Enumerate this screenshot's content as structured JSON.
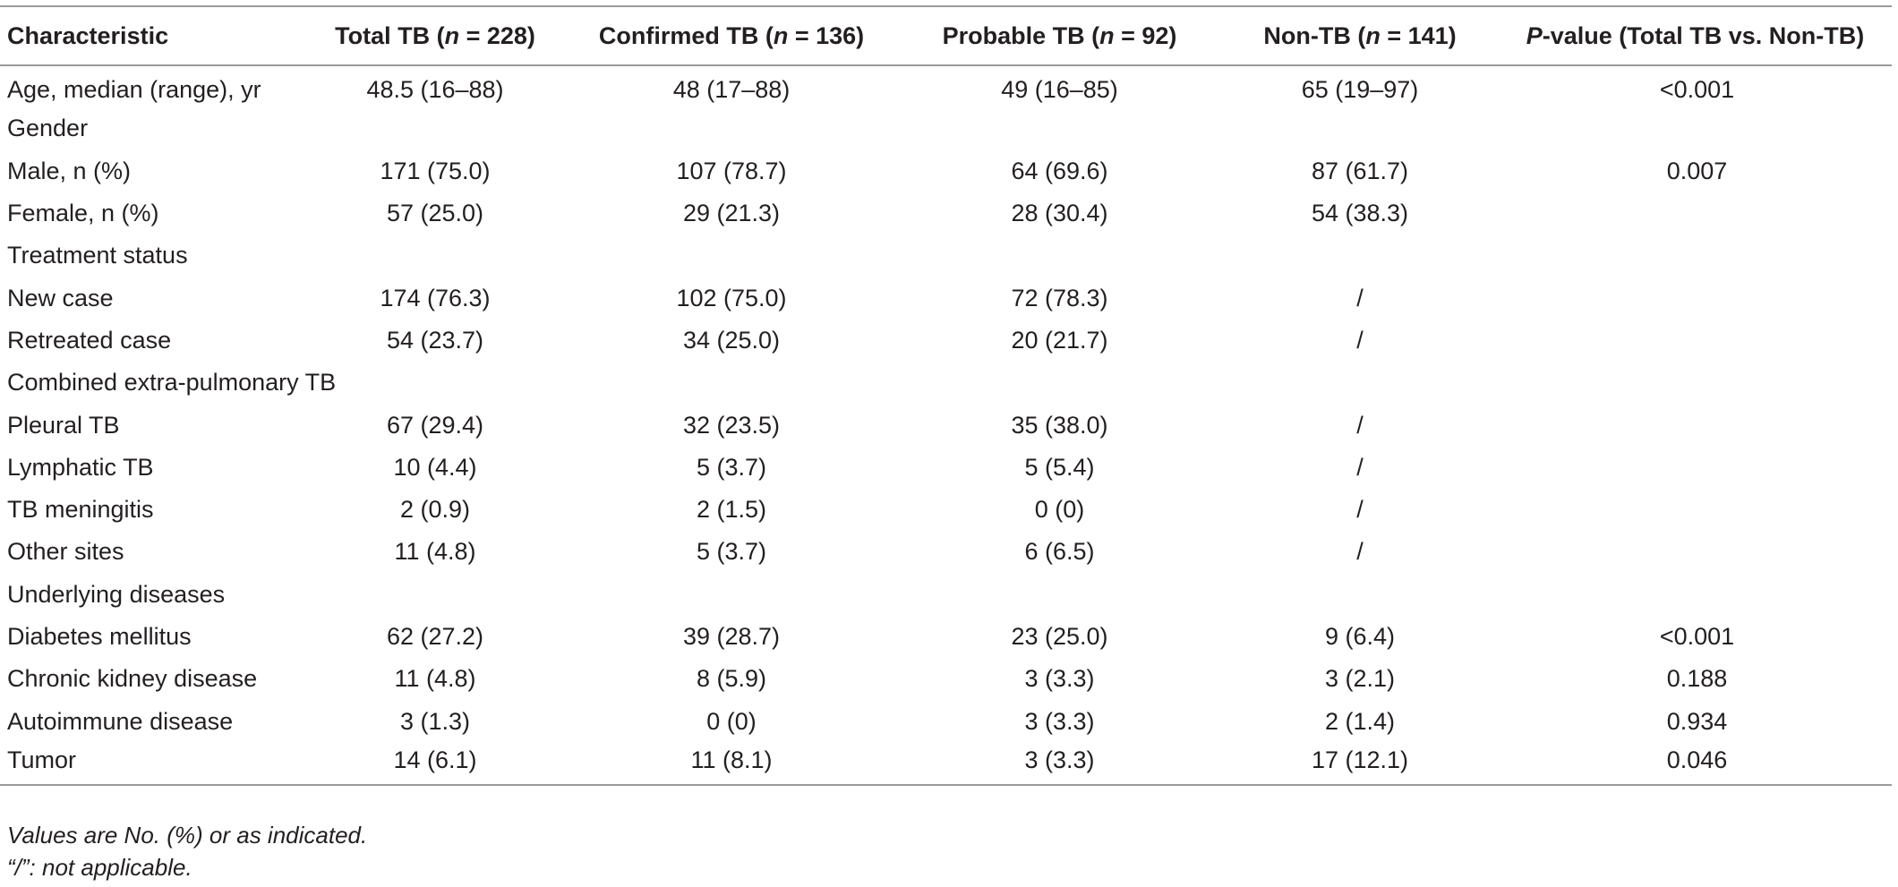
{
  "table": {
    "headers": [
      {
        "pre": "Characteristic",
        "it": "",
        "post": ""
      },
      {
        "pre": "Total TB (",
        "it": "n",
        "post": " = 228)"
      },
      {
        "pre": "Confirmed TB (",
        "it": "n",
        "post": " = 136)"
      },
      {
        "pre": "Probable TB (",
        "it": "n",
        "post": " = 92)"
      },
      {
        "pre": "Non-TB (",
        "it": "n",
        "post": " = 141)"
      },
      {
        "pre": "",
        "it": "P",
        "post": "-value (Total TB vs. Non-TB)"
      }
    ],
    "rows": [
      [
        "Age, median (range), yr",
        "48.5 (16–88)",
        "48 (17–88)",
        "49 (16–85)",
        "65 (19–97)",
        "<0.001"
      ],
      [
        "Gender",
        "",
        "",
        "",
        "",
        ""
      ],
      [
        "Male, n (%)",
        "171 (75.0)",
        "107 (78.7)",
        "64 (69.6)",
        "87 (61.7)",
        "0.007"
      ],
      [
        "Female, n (%)",
        "57 (25.0)",
        "29 (21.3)",
        "28 (30.4)",
        "54 (38.3)",
        ""
      ],
      [
        "Treatment status",
        "",
        "",
        "",
        "",
        ""
      ],
      [
        "New case",
        "174 (76.3)",
        "102 (75.0)",
        "72 (78.3)",
        "/",
        ""
      ],
      [
        "Retreated case",
        "54 (23.7)",
        "34 (25.0)",
        "20 (21.7)",
        "/",
        ""
      ],
      [
        "Combined extra-pulmonary TB",
        "",
        "",
        "",
        "",
        ""
      ],
      [
        "Pleural TB",
        "67 (29.4)",
        "32 (23.5)",
        "35 (38.0)",
        "/",
        ""
      ],
      [
        "Lymphatic TB",
        "10 (4.4)",
        "5 (3.7)",
        "5 (5.4)",
        "/",
        ""
      ],
      [
        "TB meningitis",
        "2 (0.9)",
        "2 (1.5)",
        "0 (0)",
        "/",
        ""
      ],
      [
        "Other sites",
        "11 (4.8)",
        "5 (3.7)",
        "6 (6.5)",
        "/",
        ""
      ],
      [
        "Underlying diseases",
        "",
        "",
        "",
        "",
        ""
      ],
      [
        "Diabetes mellitus",
        "62 (27.2)",
        "39 (28.7)",
        "23 (25.0)",
        "9 (6.4)",
        "<0.001"
      ],
      [
        "Chronic kidney disease",
        "11 (4.8)",
        "8 (5.9)",
        "3 (3.3)",
        "3 (2.1)",
        "0.188"
      ],
      [
        "Autoimmune disease",
        "3 (1.3)",
        "0 (0)",
        "3 (3.3)",
        "2 (1.4)",
        "0.934"
      ],
      [
        "Tumor",
        "14 (6.1)",
        "11 (8.1)",
        "3 (3.3)",
        "17 (12.1)",
        "0.046"
      ]
    ]
  },
  "notes": {
    "line1": "Values are No. (%) or as indicated.",
    "line2": "“/”: not applicable."
  }
}
